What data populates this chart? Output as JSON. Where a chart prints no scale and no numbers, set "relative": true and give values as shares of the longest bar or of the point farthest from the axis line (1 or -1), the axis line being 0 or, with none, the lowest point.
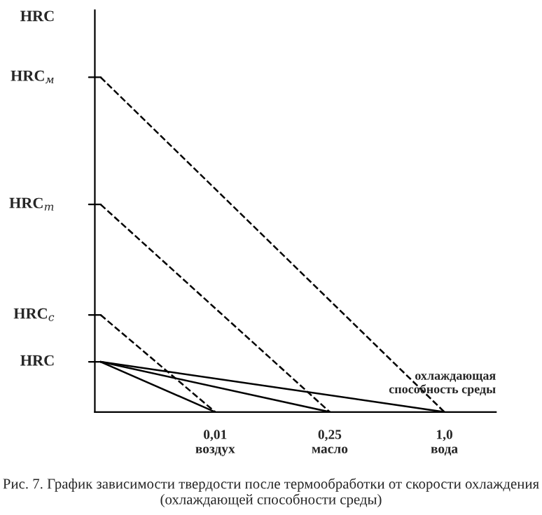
{
  "chart_data": {
    "type": "line",
    "relative": true,
    "title": "Рис. 7. График зависимости твердости после термообработки от скорости охлаждения (охлаждающей способности среды)",
    "ylabel": "HRC",
    "xlabel": "охлаждающая\nспособность среды",
    "categories": [
      null,
      "0,01\nвоздух",
      "0,25\nмасло",
      "1,0\nвода"
    ],
    "series": [
      {
        "color": "#000000",
        "line_style": "dashed",
        "values": [
          1,
          null,
          null,
          0
        ]
      },
      {
        "color": "#000000",
        "line_style": "dashed",
        "values": [
          0.62,
          null,
          0,
          null
        ]
      },
      {
        "color": "#000000",
        "line_style": "dashed",
        "values": [
          0.29,
          0,
          null,
          null
        ]
      },
      {
        "color": "#000000",
        "line_style": "solid",
        "values": [
          0.15,
          0,
          null,
          null
        ]
      },
      {
        "color": "#000000",
        "line_style": "solid",
        "values": [
          0.15,
          null,
          0,
          null
        ]
      },
      {
        "color": "#000000",
        "line_style": "solid",
        "values": [
          0.15,
          null,
          null,
          0
        ]
      }
    ],
    "annotations": [
      "HRC$_{м}$",
      "HRC$_{т}$",
      "HRC$_{с}$",
      "HRC"
    ],
    "marker": "none",
    "grid": false,
    "legend": false
  }
}
